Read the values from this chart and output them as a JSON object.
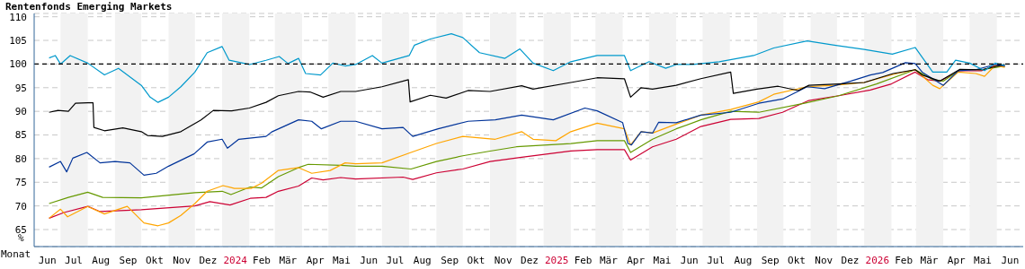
{
  "chart_data": {
    "type": "line",
    "title": "Rentenfonds Emerging Markets",
    "xlabel": "Monat",
    "ylabel": "%",
    "xlim": [
      "2023-06-01",
      "2026-07-01"
    ],
    "xticks": [
      {
        "value": "2023-06-16",
        "label": "Jun"
      },
      {
        "value": "2023-07-16",
        "label": "Jul"
      },
      {
        "value": "2023-08-16",
        "label": "Aug"
      },
      {
        "value": "2023-09-16",
        "label": "Sep"
      },
      {
        "value": "2023-10-16",
        "label": "Okt"
      },
      {
        "value": "2023-11-16",
        "label": "Nov"
      },
      {
        "value": "2023-12-16",
        "label": "Dez"
      },
      {
        "value": "2024-01-16",
        "label": "2024"
      },
      {
        "value": "2024-02-15",
        "label": "Feb"
      },
      {
        "value": "2024-03-16",
        "label": "Mär"
      },
      {
        "value": "2024-04-16",
        "label": "Apr"
      },
      {
        "value": "2024-05-16",
        "label": "Mai"
      },
      {
        "value": "2024-06-16",
        "label": "Jun"
      },
      {
        "value": "2024-07-16",
        "label": "Jul"
      },
      {
        "value": "2024-08-16",
        "label": "Aug"
      },
      {
        "value": "2024-09-16",
        "label": "Sep"
      },
      {
        "value": "2024-10-16",
        "label": "Okt"
      },
      {
        "value": "2024-11-16",
        "label": "Nov"
      },
      {
        "value": "2024-12-16",
        "label": "Dez"
      },
      {
        "value": "2025-01-16",
        "label": "2025"
      },
      {
        "value": "2025-02-15",
        "label": "Feb"
      },
      {
        "value": "2025-03-16",
        "label": "Mär"
      },
      {
        "value": "2025-04-16",
        "label": "Apr"
      },
      {
        "value": "2025-05-16",
        "label": "Mai"
      },
      {
        "value": "2025-06-16",
        "label": "Jun"
      },
      {
        "value": "2025-07-16",
        "label": "Jul"
      },
      {
        "value": "2025-08-16",
        "label": "Aug"
      },
      {
        "value": "2025-09-16",
        "label": "Sep"
      },
      {
        "value": "2025-10-16",
        "label": "Okt"
      },
      {
        "value": "2025-11-16",
        "label": "Nov"
      },
      {
        "value": "2025-12-16",
        "label": "Dez"
      },
      {
        "value": "2026-01-16",
        "label": "2026"
      },
      {
        "value": "2026-02-15",
        "label": "Feb"
      },
      {
        "value": "2026-03-16",
        "label": "Mär"
      },
      {
        "value": "2026-04-16",
        "label": "Apr"
      },
      {
        "value": "2026-05-16",
        "label": "Mai"
      },
      {
        "value": "2026-06-16",
        "label": "Jun"
      }
    ],
    "ylim": [
      61.4,
      110.7
    ],
    "yticks": [
      65,
      70,
      75,
      80,
      85,
      90,
      95,
      100,
      105,
      110
    ],
    "grid": "y",
    "ref_lines": [
      {
        "axis": "y",
        "value": 100,
        "color": "#000000",
        "line_style": "dashed"
      }
    ],
    "bands": [
      {
        "axis": "x",
        "from": "2023-07-01",
        "to": "2023-08-01",
        "color": "#f2f2f2"
      },
      {
        "axis": "x",
        "from": "2023-09-01",
        "to": "2023-10-01",
        "color": "#f2f2f2"
      },
      {
        "axis": "x",
        "from": "2023-11-01",
        "to": "2023-12-01",
        "color": "#f2f2f2"
      },
      {
        "axis": "x",
        "from": "2024-01-01",
        "to": "2024-02-01",
        "color": "#f2f2f2"
      },
      {
        "axis": "x",
        "from": "2024-03-01",
        "to": "2024-04-01",
        "color": "#f2f2f2"
      },
      {
        "axis": "x",
        "from": "2024-05-01",
        "to": "2024-06-01",
        "color": "#f2f2f2"
      },
      {
        "axis": "x",
        "from": "2024-07-01",
        "to": "2024-08-01",
        "color": "#f2f2f2"
      },
      {
        "axis": "x",
        "from": "2024-09-01",
        "to": "2024-10-01",
        "color": "#f2f2f2"
      },
      {
        "axis": "x",
        "from": "2024-11-01",
        "to": "2024-12-01",
        "color": "#f2f2f2"
      },
      {
        "axis": "x",
        "from": "2025-01-01",
        "to": "2025-02-01",
        "color": "#f2f2f2"
      },
      {
        "axis": "x",
        "from": "2025-03-01",
        "to": "2025-04-01",
        "color": "#f2f2f2"
      },
      {
        "axis": "x",
        "from": "2025-05-01",
        "to": "2025-06-01",
        "color": "#f2f2f2"
      },
      {
        "axis": "x",
        "from": "2025-07-01",
        "to": "2025-08-01",
        "color": "#f2f2f2"
      },
      {
        "axis": "x",
        "from": "2025-09-01",
        "to": "2025-10-01",
        "color": "#f2f2f2"
      },
      {
        "axis": "x",
        "from": "2025-11-01",
        "to": "2025-12-01",
        "color": "#f2f2f2"
      },
      {
        "axis": "x",
        "from": "2026-01-01",
        "to": "2026-02-01",
        "color": "#f2f2f2"
      },
      {
        "axis": "x",
        "from": "2026-03-01",
        "to": "2026-04-01",
        "color": "#f2f2f2"
      },
      {
        "axis": "x",
        "from": "2026-05-01",
        "to": "2026-06-01",
        "color": "#f2f2f2"
      }
    ],
    "line_style": "solid",
    "series": [
      {
        "color": "#cc0033",
        "x": [
          "2023-06-18",
          "2023-07-05",
          "2023-08-01",
          "2023-08-15",
          "2023-10-01",
          "2023-12-01",
          "2023-12-18",
          "2024-01-10",
          "2024-02-02",
          "2024-02-20",
          "2024-03-05",
          "2024-03-28",
          "2024-04-12",
          "2024-04-25",
          "2024-05-15",
          "2024-06-01",
          "2024-07-25",
          "2024-08-05",
          "2024-09-01",
          "2024-10-01",
          "2024-11-01",
          "2024-12-07",
          "2025-02-01",
          "2025-03-03",
          "2025-04-03",
          "2025-04-10",
          "2025-05-05",
          "2025-06-01",
          "2025-06-29",
          "2025-08-02",
          "2025-09-03",
          "2025-09-30",
          "2025-10-30",
          "2025-12-03",
          "2026-01-08",
          "2026-02-01",
          "2026-02-28",
          "2026-03-14",
          "2026-03-28",
          "2026-04-20",
          "2026-05-15",
          "2026-05-30",
          "2026-06-10"
        ],
        "values": [
          67.4,
          68.6,
          69.9,
          68.8,
          69.2,
          70.0,
          70.9,
          70.2,
          71.6,
          71.8,
          73.1,
          74.2,
          75.9,
          75.5,
          76.0,
          75.7,
          76.1,
          75.6,
          77.0,
          77.8,
          79.4,
          80.3,
          81.6,
          81.9,
          81.9,
          79.7,
          82.5,
          84.1,
          86.8,
          88.3,
          88.5,
          89.8,
          92.3,
          93.3,
          94.5,
          95.8,
          98.3,
          96.7,
          96.4,
          98.6,
          98.6,
          99.7,
          99.5
        ]
      },
      {
        "color": "#669900",
        "x": [
          "2023-06-18",
          "2023-07-10",
          "2023-08-01",
          "2023-08-18",
          "2023-10-01",
          "2023-12-01",
          "2024-01-01",
          "2024-01-11",
          "2024-02-02",
          "2024-02-15",
          "2024-03-05",
          "2024-03-28",
          "2024-04-08",
          "2024-05-15",
          "2024-06-01",
          "2024-07-01",
          "2024-08-03",
          "2024-09-01",
          "2024-10-01",
          "2024-11-01",
          "2024-12-01",
          "2025-02-01",
          "2025-03-03",
          "2025-04-03",
          "2025-04-10",
          "2025-05-05",
          "2025-06-01",
          "2025-06-29",
          "2025-08-02",
          "2025-09-03",
          "2025-10-25",
          "2025-12-03",
          "2026-01-15",
          "2026-02-28",
          "2026-03-20",
          "2026-04-01",
          "2026-04-20",
          "2026-05-15",
          "2026-06-10"
        ],
        "values": [
          70.5,
          71.8,
          72.9,
          71.8,
          71.7,
          72.8,
          73.1,
          72.4,
          74.0,
          73.8,
          76.2,
          78.1,
          78.8,
          78.6,
          78.4,
          78.4,
          77.8,
          79.4,
          80.6,
          81.6,
          82.5,
          83.2,
          83.8,
          83.8,
          81.3,
          84.1,
          86.3,
          88.2,
          90.0,
          89.8,
          91.7,
          93.3,
          95.8,
          98.8,
          96.7,
          96.4,
          98.8,
          98.8,
          99.6
        ]
      },
      {
        "color": "#ffa500",
        "x": [
          "2023-06-18",
          "2023-07-01",
          "2023-07-09",
          "2023-08-01",
          "2023-08-20",
          "2023-09-15",
          "2023-10-04",
          "2023-10-20",
          "2023-11-01",
          "2023-11-15",
          "2023-12-01",
          "2023-12-15",
          "2024-01-02",
          "2024-01-15",
          "2024-02-03",
          "2024-02-15",
          "2024-03-05",
          "2024-03-28",
          "2024-04-12",
          "2024-05-03",
          "2024-05-20",
          "2024-06-01",
          "2024-07-01",
          "2024-08-03",
          "2024-09-01",
          "2024-10-01",
          "2024-11-07",
          "2024-12-07",
          "2024-12-20",
          "2025-01-15",
          "2025-02-01",
          "2025-03-03",
          "2025-04-03",
          "2025-04-10",
          "2025-04-22",
          "2025-05-05",
          "2025-06-01",
          "2025-06-29",
          "2025-08-02",
          "2025-09-03",
          "2025-09-20",
          "2025-10-28",
          "2025-11-28",
          "2026-01-01",
          "2026-02-03",
          "2026-02-28",
          "2026-03-20",
          "2026-03-28",
          "2026-04-18",
          "2026-05-08",
          "2026-05-18",
          "2026-05-30",
          "2026-06-10"
        ],
        "values": [
          67.4,
          69.3,
          67.7,
          69.9,
          68.3,
          69.9,
          66.4,
          65.8,
          66.4,
          68.0,
          70.5,
          73.1,
          74.3,
          73.7,
          73.7,
          74.8,
          77.5,
          78.1,
          76.9,
          77.5,
          79.1,
          78.9,
          79.1,
          81.3,
          83.2,
          84.7,
          84.1,
          85.7,
          84.1,
          83.8,
          85.7,
          87.5,
          86.3,
          82.9,
          85.7,
          85.4,
          87.3,
          89.2,
          90.4,
          92.0,
          93.6,
          95.2,
          95.5,
          96.1,
          97.8,
          98.8,
          95.5,
          94.8,
          98.3,
          98.0,
          97.4,
          99.7,
          99.3
        ]
      },
      {
        "color": "#003399",
        "x": [
          "2023-06-18",
          "2023-07-01",
          "2023-07-08",
          "2023-07-15",
          "2023-07-31",
          "2023-08-15",
          "2023-09-01",
          "2023-09-18",
          "2023-10-04",
          "2023-10-18",
          "2023-11-01",
          "2023-11-30",
          "2023-12-15",
          "2024-01-01",
          "2024-01-07",
          "2024-01-20",
          "2024-02-20",
          "2024-02-27",
          "2024-03-28",
          "2024-04-12",
          "2024-04-23",
          "2024-05-15",
          "2024-06-01",
          "2024-07-01",
          "2024-07-25",
          "2024-08-05",
          "2024-09-03",
          "2024-10-07",
          "2024-11-07",
          "2024-12-07",
          "2025-01-12",
          "2025-02-17",
          "2025-03-03",
          "2025-04-01",
          "2025-04-07",
          "2025-04-11",
          "2025-04-22",
          "2025-05-05",
          "2025-05-12",
          "2025-06-01",
          "2025-06-29",
          "2025-08-02",
          "2025-09-03",
          "2025-09-30",
          "2025-10-28",
          "2025-11-17",
          "2025-12-17",
          "2026-01-08",
          "2026-01-22",
          "2026-02-17",
          "2026-02-28",
          "2026-03-08",
          "2026-04-01",
          "2026-04-18",
          "2026-05-08",
          "2026-05-30",
          "2026-06-10"
        ],
        "values": [
          78.2,
          79.4,
          77.2,
          80.1,
          81.3,
          79.1,
          79.4,
          79.1,
          76.5,
          76.9,
          78.4,
          81.0,
          83.5,
          84.1,
          82.2,
          84.1,
          84.7,
          85.7,
          88.2,
          87.9,
          86.3,
          87.9,
          87.9,
          86.3,
          86.6,
          84.7,
          86.3,
          87.9,
          88.2,
          89.2,
          88.2,
          90.7,
          90.1,
          87.6,
          83.2,
          82.9,
          85.7,
          85.4,
          87.7,
          87.6,
          89.2,
          89.8,
          91.7,
          92.6,
          95.2,
          94.8,
          96.4,
          97.7,
          98.2,
          100.3,
          100.1,
          98.3,
          95.5,
          98.6,
          98.8,
          99.9,
          99.6
        ]
      },
      {
        "color": "#000000",
        "x": [
          "2023-06-18",
          "2023-06-28",
          "2023-07-10",
          "2023-07-18",
          "2023-08-01",
          "2023-08-07",
          "2023-08-08",
          "2023-08-20",
          "2023-09-10",
          "2023-10-01",
          "2023-10-08",
          "2023-10-25",
          "2023-11-15",
          "2023-12-08",
          "2023-12-22",
          "2024-01-12",
          "2024-02-01",
          "2024-02-20",
          "2024-03-05",
          "2024-03-28",
          "2024-04-10",
          "2024-04-25",
          "2024-05-15",
          "2024-06-01",
          "2024-07-01",
          "2024-07-31",
          "2024-08-02",
          "2024-08-25",
          "2024-09-12",
          "2024-10-07",
          "2024-11-01",
          "2024-12-07",
          "2024-12-20",
          "2025-02-01",
          "2025-03-03",
          "2025-04-03",
          "2025-04-10",
          "2025-04-22",
          "2025-05-05",
          "2025-06-01",
          "2025-06-29",
          "2025-08-02",
          "2025-08-05",
          "2025-09-01",
          "2025-09-25",
          "2025-10-18",
          "2025-10-30",
          "2025-12-03",
          "2026-01-01",
          "2026-02-03",
          "2026-02-28",
          "2026-03-08",
          "2026-03-28",
          "2026-04-20",
          "2026-05-15",
          "2026-06-10"
        ],
        "values": [
          89.8,
          90.2,
          90.0,
          91.7,
          91.8,
          91.8,
          86.6,
          85.9,
          86.5,
          85.7,
          84.9,
          84.7,
          85.7,
          88.2,
          90.2,
          90.1,
          90.7,
          91.9,
          93.3,
          94.2,
          94.1,
          93.0,
          94.2,
          94.2,
          95.2,
          96.7,
          92.0,
          93.4,
          92.8,
          94.4,
          94.2,
          95.4,
          94.7,
          96.1,
          97.1,
          96.9,
          93.0,
          95.0,
          94.7,
          95.5,
          96.9,
          98.3,
          93.8,
          94.7,
          95.3,
          94.4,
          95.5,
          95.8,
          96.1,
          98.0,
          98.8,
          97.7,
          96.4,
          98.9,
          98.8,
          99.9
        ]
      },
      {
        "color": "#0099cc",
        "x": [
          "2023-06-18",
          "2023-06-25",
          "2023-07-01",
          "2023-07-12",
          "2023-08-01",
          "2023-08-20",
          "2023-09-05",
          "2023-10-01",
          "2023-10-11",
          "2023-10-20",
          "2023-11-01",
          "2023-11-15",
          "2023-12-01",
          "2023-12-15",
          "2024-01-01",
          "2024-01-09",
          "2024-02-01",
          "2024-02-20",
          "2024-03-06",
          "2024-03-16",
          "2024-03-28",
          "2024-04-05",
          "2024-04-22",
          "2024-05-06",
          "2024-05-20",
          "2024-06-01",
          "2024-06-20",
          "2024-07-01",
          "2024-08-01",
          "2024-08-07",
          "2024-08-25",
          "2024-09-18",
          "2024-10-01",
          "2024-10-20",
          "2024-11-18",
          "2024-12-05",
          "2024-12-20",
          "2025-01-12",
          "2025-02-01",
          "2025-03-03",
          "2025-04-03",
          "2025-04-10",
          "2025-05-01",
          "2025-05-20",
          "2025-06-01",
          "2025-06-20",
          "2025-07-20",
          "2025-08-28",
          "2025-09-20",
          "2025-10-28",
          "2025-11-28",
          "2026-01-01",
          "2026-02-02",
          "2026-02-28",
          "2026-03-20",
          "2026-04-05",
          "2026-04-15",
          "2026-05-01",
          "2026-05-18",
          "2026-05-30",
          "2026-06-10"
        ],
        "values": [
          101.3,
          101.8,
          100.0,
          101.8,
          100.2,
          97.7,
          99.1,
          95.5,
          93.0,
          91.9,
          93.0,
          95.2,
          98.3,
          102.4,
          103.7,
          100.8,
          99.9,
          100.8,
          101.6,
          100.1,
          101.2,
          98.0,
          97.7,
          100.2,
          99.6,
          99.9,
          101.8,
          100.2,
          101.8,
          104.0,
          105.3,
          106.4,
          105.6,
          102.4,
          101.2,
          103.2,
          100.2,
          98.6,
          100.5,
          101.8,
          101.8,
          98.6,
          100.5,
          99.1,
          99.9,
          99.9,
          100.5,
          101.8,
          103.4,
          104.9,
          104.0,
          103.1,
          102.1,
          103.5,
          98.3,
          98.3,
          100.8,
          100.2,
          98.6,
          100.2,
          99.7
        ]
      }
    ]
  }
}
